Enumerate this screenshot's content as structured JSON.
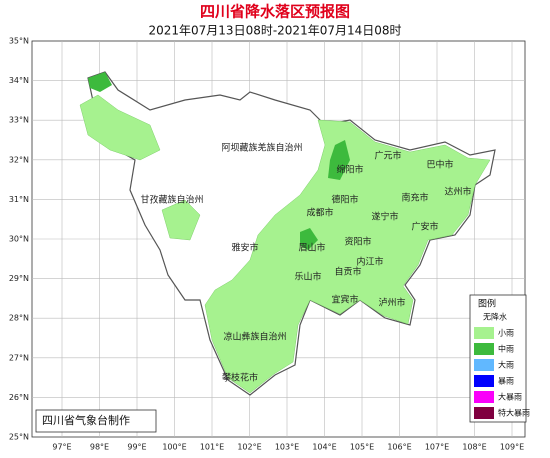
{
  "map": {
    "title": "四川省降水落区预报图",
    "subtitle": "2021年07月13日08时-2021年07月14日08时",
    "lat_labels": [
      "35°N",
      "34°N",
      "33°N",
      "32°N",
      "31°N",
      "30°N",
      "29°N",
      "28°N",
      "27°N",
      "26°N",
      "25°N"
    ],
    "lon_labels": [
      "97°E",
      "98°E",
      "99°E",
      "100°E",
      "101°E",
      "102°E",
      "103°E",
      "104°E",
      "105°E",
      "106°E",
      "107°E",
      "108°E",
      "109°E"
    ],
    "places": [
      "阿坝藏族羌族自治州",
      "甘孜藏族自治州",
      "凉山彝族自治州",
      "攀枝花市",
      "雅安市",
      "眉山市",
      "乐山市",
      "成都市",
      "德阳市",
      "绵阳市",
      "广元市",
      "巴中市",
      "达州市",
      "南充市",
      "遂宁市",
      "广安市",
      "资阳市",
      "内江市",
      "自贡市",
      "宜宾市",
      "泸州市"
    ],
    "legend": {
      "title": "图例",
      "items": [
        {
          "label": "无降水",
          "color": "#ffffff"
        },
        {
          "label": "小雨",
          "color": "#a6f28f"
        },
        {
          "label": "中雨",
          "color": "#3dba3d"
        },
        {
          "label": "大雨",
          "color": "#61b8ff"
        },
        {
          "label": "暴雨",
          "color": "#0000fe"
        },
        {
          "label": "大暴雨",
          "color": "#fa00fa"
        },
        {
          "label": "特大暴雨",
          "color": "#800040"
        }
      ]
    },
    "footer": "四川省气象台制作"
  }
}
